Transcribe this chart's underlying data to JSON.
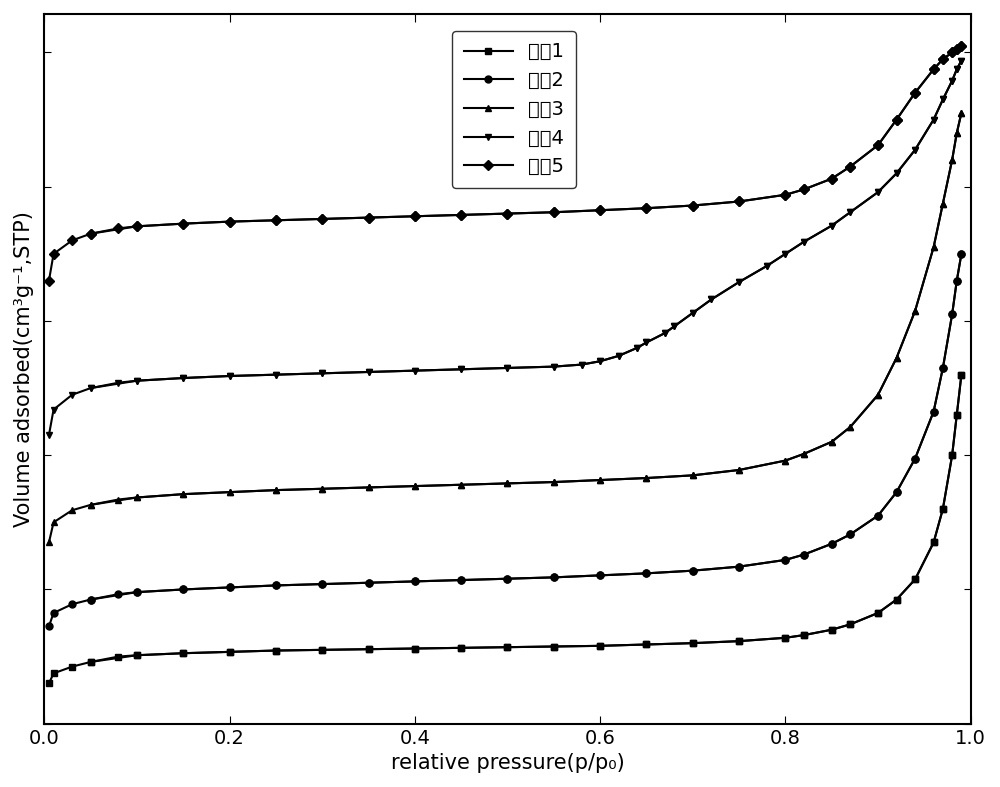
{
  "xlabel": "relative pressure(p/p₀)",
  "ylabel": "Volume adsorbed(cm³g⁻¹,STP)",
  "xlim": [
    0.0,
    1.0
  ],
  "series": [
    {
      "label": "实入1",
      "marker": "s",
      "adsorption_x": [
        0.005,
        0.01,
        0.03,
        0.05,
        0.08,
        0.1,
        0.15,
        0.2,
        0.25,
        0.3,
        0.35,
        0.4,
        0.45,
        0.5,
        0.55,
        0.6,
        0.65,
        0.7,
        0.75,
        0.8,
        0.82,
        0.85,
        0.87,
        0.9,
        0.92,
        0.94,
        0.96,
        0.97,
        0.98,
        0.985,
        0.99
      ],
      "adsorption_y": [
        0.06,
        0.075,
        0.085,
        0.092,
        0.1,
        0.102,
        0.105,
        0.107,
        0.109,
        0.11,
        0.111,
        0.112,
        0.113,
        0.114,
        0.115,
        0.116,
        0.118,
        0.12,
        0.123,
        0.128,
        0.132,
        0.14,
        0.148,
        0.165,
        0.185,
        0.215,
        0.27,
        0.32,
        0.4,
        0.46,
        0.52
      ],
      "desorption_x": [
        0.99,
        0.985,
        0.98,
        0.97,
        0.96,
        0.94,
        0.92,
        0.9,
        0.87,
        0.85,
        0.82,
        0.8,
        0.75,
        0.7,
        0.65,
        0.6,
        0.55,
        0.5,
        0.45,
        0.4,
        0.35,
        0.3,
        0.25,
        0.2,
        0.15,
        0.1,
        0.05
      ],
      "desorption_y": [
        0.52,
        0.46,
        0.4,
        0.32,
        0.27,
        0.215,
        0.185,
        0.165,
        0.148,
        0.14,
        0.132,
        0.128,
        0.123,
        0.12,
        0.118,
        0.116,
        0.115,
        0.114,
        0.113,
        0.112,
        0.111,
        0.11,
        0.109,
        0.107,
        0.105,
        0.102,
        0.092
      ]
    },
    {
      "label": "实入2",
      "marker": "o",
      "adsorption_x": [
        0.005,
        0.01,
        0.03,
        0.05,
        0.08,
        0.1,
        0.15,
        0.2,
        0.25,
        0.3,
        0.35,
        0.4,
        0.45,
        0.5,
        0.55,
        0.6,
        0.65,
        0.7,
        0.75,
        0.8,
        0.82,
        0.85,
        0.87,
        0.9,
        0.92,
        0.94,
        0.96,
        0.97,
        0.98,
        0.985,
        0.99
      ],
      "adsorption_y": [
        0.145,
        0.165,
        0.178,
        0.185,
        0.193,
        0.196,
        0.2,
        0.203,
        0.206,
        0.208,
        0.21,
        0.212,
        0.214,
        0.216,
        0.218,
        0.221,
        0.224,
        0.228,
        0.234,
        0.244,
        0.252,
        0.268,
        0.282,
        0.31,
        0.345,
        0.395,
        0.465,
        0.53,
        0.61,
        0.66,
        0.7
      ],
      "desorption_x": [
        0.99,
        0.985,
        0.98,
        0.97,
        0.96,
        0.94,
        0.92,
        0.9,
        0.87,
        0.85,
        0.82,
        0.8,
        0.75,
        0.7,
        0.65,
        0.6,
        0.55,
        0.5,
        0.45,
        0.4,
        0.35,
        0.3,
        0.25,
        0.2,
        0.15,
        0.1,
        0.05
      ],
      "desorption_y": [
        0.7,
        0.66,
        0.61,
        0.53,
        0.465,
        0.395,
        0.345,
        0.31,
        0.282,
        0.268,
        0.252,
        0.244,
        0.234,
        0.228,
        0.224,
        0.221,
        0.218,
        0.216,
        0.214,
        0.212,
        0.21,
        0.208,
        0.206,
        0.203,
        0.2,
        0.196,
        0.185
      ]
    },
    {
      "label": "实入3",
      "marker": "^",
      "adsorption_x": [
        0.005,
        0.01,
        0.03,
        0.05,
        0.08,
        0.1,
        0.15,
        0.2,
        0.25,
        0.3,
        0.35,
        0.4,
        0.45,
        0.5,
        0.55,
        0.6,
        0.65,
        0.7,
        0.75,
        0.8,
        0.82,
        0.85,
        0.87,
        0.9,
        0.92,
        0.94,
        0.96,
        0.97,
        0.98,
        0.985,
        0.99
      ],
      "adsorption_y": [
        0.27,
        0.3,
        0.318,
        0.326,
        0.334,
        0.337,
        0.342,
        0.345,
        0.348,
        0.35,
        0.352,
        0.354,
        0.356,
        0.358,
        0.36,
        0.363,
        0.366,
        0.37,
        0.378,
        0.392,
        0.402,
        0.42,
        0.442,
        0.49,
        0.545,
        0.615,
        0.71,
        0.775,
        0.84,
        0.88,
        0.91
      ],
      "desorption_x": [
        0.99,
        0.985,
        0.98,
        0.97,
        0.96,
        0.94,
        0.92,
        0.9,
        0.87,
        0.85,
        0.82,
        0.8,
        0.75,
        0.7,
        0.65,
        0.6,
        0.55,
        0.5,
        0.45,
        0.4,
        0.35,
        0.3,
        0.25,
        0.2,
        0.15,
        0.1,
        0.05
      ],
      "desorption_y": [
        0.91,
        0.88,
        0.84,
        0.775,
        0.71,
        0.615,
        0.545,
        0.49,
        0.442,
        0.42,
        0.402,
        0.392,
        0.378,
        0.37,
        0.366,
        0.363,
        0.36,
        0.358,
        0.356,
        0.354,
        0.352,
        0.35,
        0.348,
        0.345,
        0.342,
        0.337,
        0.326
      ]
    },
    {
      "label": "实入4",
      "marker": "v",
      "adsorption_x": [
        0.005,
        0.01,
        0.03,
        0.05,
        0.08,
        0.1,
        0.15,
        0.2,
        0.25,
        0.3,
        0.35,
        0.4,
        0.45,
        0.5,
        0.55,
        0.58,
        0.6,
        0.62,
        0.64,
        0.65,
        0.67,
        0.68,
        0.7,
        0.72,
        0.75,
        0.78,
        0.8,
        0.82,
        0.85,
        0.87,
        0.9,
        0.92,
        0.94,
        0.96,
        0.97,
        0.98,
        0.985,
        0.99
      ],
      "adsorption_y": [
        0.43,
        0.468,
        0.49,
        0.5,
        0.508,
        0.511,
        0.515,
        0.518,
        0.52,
        0.522,
        0.524,
        0.526,
        0.528,
        0.53,
        0.532,
        0.535,
        0.54,
        0.548,
        0.56,
        0.568,
        0.582,
        0.592,
        0.612,
        0.632,
        0.658,
        0.682,
        0.7,
        0.718,
        0.742,
        0.762,
        0.792,
        0.82,
        0.855,
        0.9,
        0.93,
        0.958,
        0.975,
        0.988
      ],
      "desorption_x": [
        0.99,
        0.985,
        0.98,
        0.97,
        0.96,
        0.94,
        0.92,
        0.9,
        0.87,
        0.85,
        0.82,
        0.8,
        0.78,
        0.75,
        0.72,
        0.7,
        0.68,
        0.67,
        0.65,
        0.64,
        0.62,
        0.6,
        0.58,
        0.55,
        0.5,
        0.45,
        0.4,
        0.35,
        0.3,
        0.25,
        0.2,
        0.15,
        0.1,
        0.05
      ],
      "desorption_y": [
        0.988,
        0.975,
        0.958,
        0.93,
        0.9,
        0.855,
        0.82,
        0.792,
        0.762,
        0.742,
        0.718,
        0.7,
        0.682,
        0.658,
        0.632,
        0.612,
        0.592,
        0.582,
        0.568,
        0.56,
        0.548,
        0.54,
        0.535,
        0.532,
        0.53,
        0.528,
        0.526,
        0.524,
        0.522,
        0.52,
        0.518,
        0.515,
        0.511,
        0.5
      ]
    },
    {
      "label": "实入5",
      "marker": "D",
      "adsorption_x": [
        0.005,
        0.01,
        0.03,
        0.05,
        0.08,
        0.1,
        0.15,
        0.2,
        0.25,
        0.3,
        0.35,
        0.4,
        0.45,
        0.5,
        0.55,
        0.6,
        0.65,
        0.7,
        0.75,
        0.8,
        0.82,
        0.85,
        0.87,
        0.9,
        0.92,
        0.94,
        0.96,
        0.97,
        0.98,
        0.985,
        0.99
      ],
      "adsorption_y": [
        0.66,
        0.7,
        0.72,
        0.73,
        0.738,
        0.741,
        0.745,
        0.748,
        0.75,
        0.752,
        0.754,
        0.756,
        0.758,
        0.76,
        0.762,
        0.765,
        0.768,
        0.772,
        0.778,
        0.788,
        0.796,
        0.812,
        0.83,
        0.862,
        0.9,
        0.94,
        0.975,
        0.99,
        1.0,
        1.005,
        1.01
      ],
      "desorption_x": [
        0.99,
        0.985,
        0.98,
        0.97,
        0.96,
        0.94,
        0.92,
        0.9,
        0.87,
        0.85,
        0.82,
        0.8,
        0.75,
        0.7,
        0.65,
        0.6,
        0.55,
        0.5,
        0.45,
        0.4,
        0.35,
        0.3,
        0.25,
        0.2,
        0.15,
        0.1,
        0.05
      ],
      "desorption_y": [
        1.01,
        1.005,
        1.0,
        0.99,
        0.975,
        0.94,
        0.9,
        0.862,
        0.83,
        0.812,
        0.796,
        0.788,
        0.778,
        0.772,
        0.768,
        0.765,
        0.762,
        0.76,
        0.758,
        0.756,
        0.754,
        0.752,
        0.75,
        0.748,
        0.745,
        0.741,
        0.73
      ]
    }
  ],
  "background_color": "#ffffff",
  "line_color": "#000000",
  "linewidth": 1.5,
  "markersize": 5,
  "legend_fontsize": 14,
  "axis_label_fontsize": 15,
  "tick_fontsize": 14
}
